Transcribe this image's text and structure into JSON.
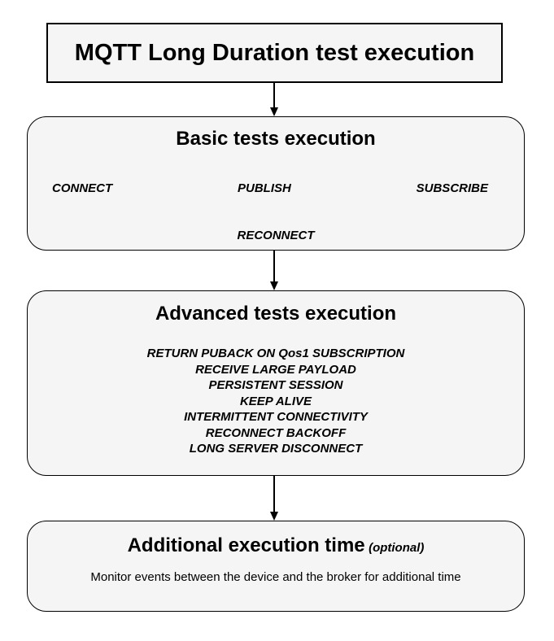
{
  "diagram": {
    "title_box": {
      "label": "MQTT Long Duration test execution"
    },
    "basic_box": {
      "title": "Basic tests execution",
      "row_items": [
        "CONNECT",
        "PUBLISH",
        "SUBSCRIBE"
      ],
      "bottom_item": "RECONNECT"
    },
    "advanced_box": {
      "title": "Advanced tests execution",
      "items": [
        "RETURN PUBACK ON Qos1 SUBSCRIPTION",
        "RECEIVE LARGE PAYLOAD",
        "PERSISTENT SESSION",
        "KEEP ALIVE",
        "INTERMITTENT CONNECTIVITY",
        "RECONNECT BACKOFF",
        "LONG SERVER DISCONNECT"
      ]
    },
    "additional_box": {
      "title": "Additional execution time",
      "title_suffix": "(optional)",
      "description": "Monitor events between the device and the broker for additional time"
    },
    "colors": {
      "box_fill": "#f5f5f5",
      "box_border": "#000000",
      "background": "#ffffff",
      "text": "#000000"
    }
  }
}
